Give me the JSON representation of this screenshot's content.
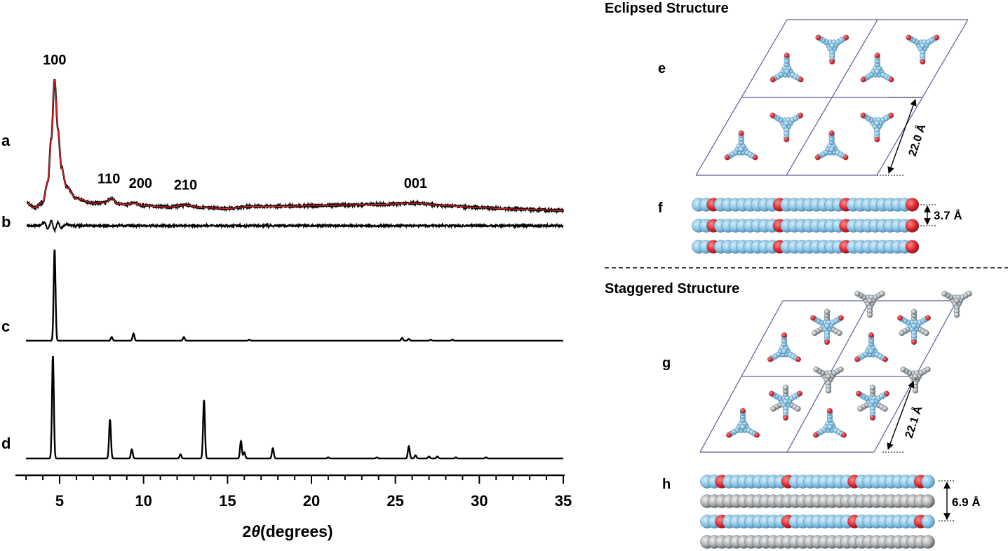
{
  "chart_data": {
    "type": "line",
    "xlabel_prefix": "2",
    "xlabel_symbol": "θ",
    "xlabel_suffix": "(degrees)",
    "xlim": [
      3,
      35
    ],
    "x_ticks": [
      5,
      10,
      15,
      20,
      25,
      30,
      35
    ],
    "x_tick_labels": [
      "5",
      "10",
      "15",
      "20",
      "25",
      "30",
      "35"
    ],
    "colors": {
      "fit": "#d42020",
      "trace": "#000000"
    },
    "panels": [
      {
        "label": "a",
        "kind": "experimental",
        "description_peaks": [
          {
            "x": 4.7,
            "hkl": "100"
          },
          {
            "x": 8.1,
            "hkl": "110"
          },
          {
            "x": 9.4,
            "hkl": "200"
          },
          {
            "x": 12.5,
            "hkl": "210"
          },
          {
            "x": 26.2,
            "hkl": "001"
          }
        ],
        "points": [
          [
            3.0,
            0.06
          ],
          [
            3.5,
            0.02
          ],
          [
            4.0,
            0.06
          ],
          [
            4.3,
            0.22
          ],
          [
            4.5,
            0.55
          ],
          [
            4.7,
            1.0
          ],
          [
            4.9,
            0.62
          ],
          [
            5.1,
            0.34
          ],
          [
            5.4,
            0.18
          ],
          [
            6.0,
            0.09
          ],
          [
            7.0,
            0.055
          ],
          [
            7.7,
            0.06
          ],
          [
            8.1,
            0.09
          ],
          [
            8.5,
            0.05
          ],
          [
            9.0,
            0.045
          ],
          [
            9.4,
            0.055
          ],
          [
            10.0,
            0.035
          ],
          [
            11.5,
            0.025
          ],
          [
            12.5,
            0.04
          ],
          [
            13.5,
            0.02
          ],
          [
            15.0,
            0.015
          ],
          [
            16.5,
            0.03
          ],
          [
            18.0,
            0.03
          ],
          [
            20.0,
            0.035
          ],
          [
            22.0,
            0.04
          ],
          [
            24.0,
            0.045
          ],
          [
            26.2,
            0.055
          ],
          [
            28.0,
            0.035
          ],
          [
            30.0,
            0.02
          ],
          [
            32.5,
            0.008
          ],
          [
            35.0,
            0.0
          ]
        ]
      },
      {
        "label": "b",
        "kind": "difference",
        "points": [
          [
            3.0,
            0.0
          ],
          [
            3.8,
            0.0
          ],
          [
            4.1,
            0.03
          ],
          [
            4.3,
            -0.03
          ],
          [
            4.5,
            0.04
          ],
          [
            4.7,
            -0.04
          ],
          [
            4.9,
            0.03
          ],
          [
            5.1,
            -0.02
          ],
          [
            5.4,
            0.01
          ],
          [
            5.8,
            0.0
          ],
          [
            35.0,
            0.0
          ]
        ]
      },
      {
        "label": "c",
        "kind": "simulated-eclipsed",
        "peaks": [
          [
            4.7,
            1.0
          ],
          [
            8.1,
            0.04
          ],
          [
            9.4,
            0.08
          ],
          [
            12.4,
            0.04
          ],
          [
            16.3,
            0.01
          ],
          [
            25.4,
            0.03
          ],
          [
            25.8,
            0.02
          ],
          [
            27.1,
            0.01
          ],
          [
            28.4,
            0.01
          ]
        ]
      },
      {
        "label": "d",
        "kind": "simulated-staggered",
        "peaks": [
          [
            4.6,
            1.0
          ],
          [
            8.0,
            0.38
          ],
          [
            9.3,
            0.09
          ],
          [
            12.2,
            0.04
          ],
          [
            13.6,
            0.57
          ],
          [
            15.8,
            0.17
          ],
          [
            16.0,
            0.06
          ],
          [
            17.7,
            0.1
          ],
          [
            21.0,
            0.01
          ],
          [
            23.9,
            0.01
          ],
          [
            25.8,
            0.12
          ],
          [
            26.2,
            0.03
          ],
          [
            27.0,
            0.02
          ],
          [
            27.5,
            0.02
          ],
          [
            28.6,
            0.01
          ],
          [
            30.4,
            0.01
          ]
        ]
      }
    ]
  },
  "structures": {
    "eclipsed_title": "Eclipsed Structure",
    "staggered_title": "Staggered Structure",
    "panels": [
      {
        "label": "e",
        "view": "top",
        "dimension": "22.0 Å"
      },
      {
        "label": "f",
        "view": "side",
        "dimension": "3.7 Å"
      },
      {
        "label": "g",
        "view": "top",
        "dimension": "22.1 Å"
      },
      {
        "label": "h",
        "view": "side",
        "dimension": "6.9 Å"
      }
    ],
    "atom_colors": {
      "carbon": "#87c3e4",
      "boron-oxygen": "#e0252b",
      "offset-layer": "#aaaaaa"
    }
  }
}
